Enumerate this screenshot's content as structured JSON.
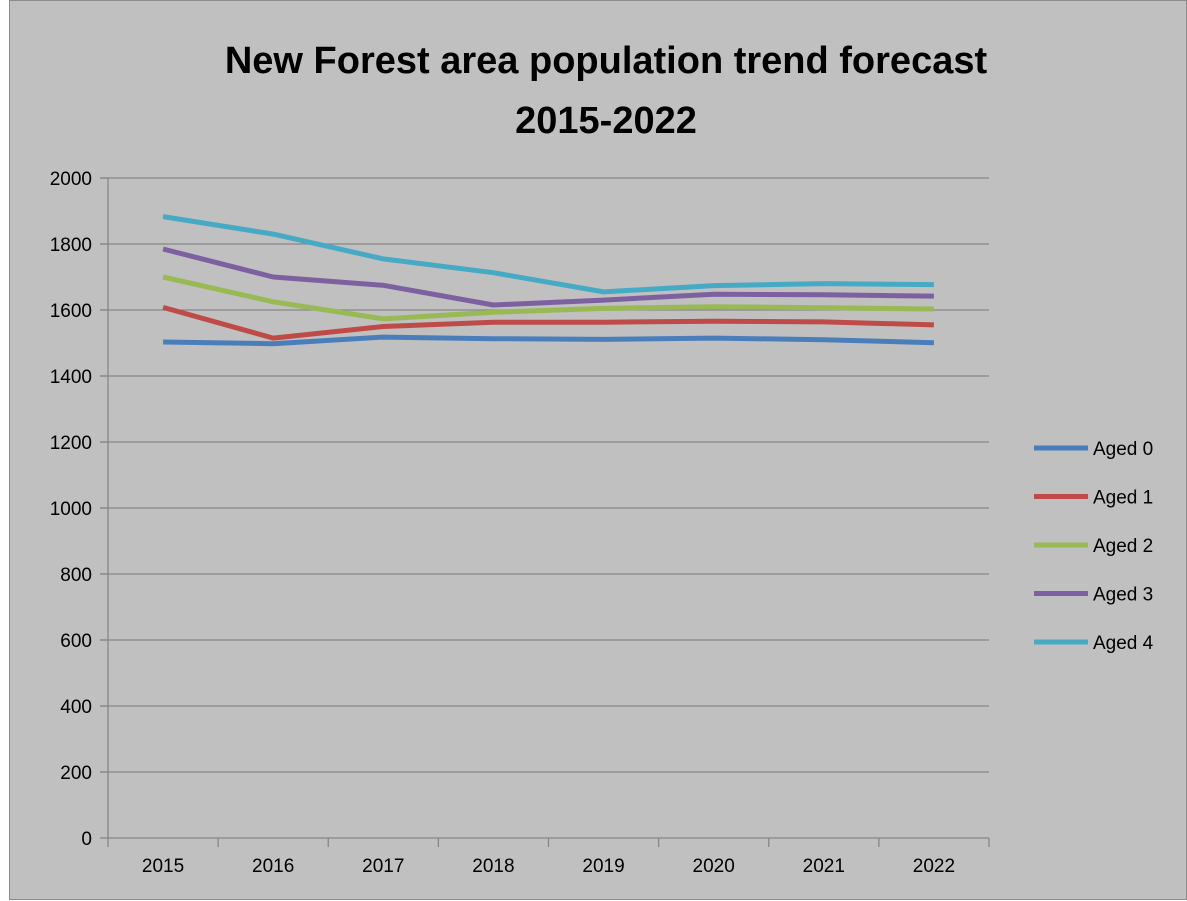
{
  "chart_data": {
    "type": "line",
    "title_lines": [
      "New Forest area population trend forecast",
      "2015-2022"
    ],
    "xlabel": "",
    "ylabel": "",
    "categories": [
      "2015",
      "2016",
      "2017",
      "2018",
      "2019",
      "2020",
      "2021",
      "2022"
    ],
    "ylim": [
      0,
      2000
    ],
    "yticks": [
      "0",
      "200",
      "400",
      "600",
      "800",
      "1000",
      "1200",
      "1400",
      "1600",
      "1800",
      "2000"
    ],
    "grid": "horizontal",
    "legend_position": "right",
    "series": [
      {
        "name": "Aged 0",
        "color": "#4a7ebb",
        "values": [
          1503,
          1498,
          1518,
          1513,
          1511,
          1515,
          1510,
          1501
        ]
      },
      {
        "name": "Aged 1",
        "color": "#be4b48",
        "values": [
          1608,
          1515,
          1550,
          1563,
          1563,
          1566,
          1564,
          1555
        ]
      },
      {
        "name": "Aged 2",
        "color": "#98b954",
        "values": [
          1700,
          1625,
          1573,
          1593,
          1605,
          1610,
          1607,
          1603
        ]
      },
      {
        "name": "Aged 3",
        "color": "#7d60a0",
        "values": [
          1785,
          1700,
          1675,
          1615,
          1630,
          1648,
          1646,
          1642
        ]
      },
      {
        "name": "Aged 4",
        "color": "#46aac5",
        "values": [
          1883,
          1830,
          1755,
          1713,
          1655,
          1674,
          1680,
          1677
        ]
      }
    ]
  }
}
